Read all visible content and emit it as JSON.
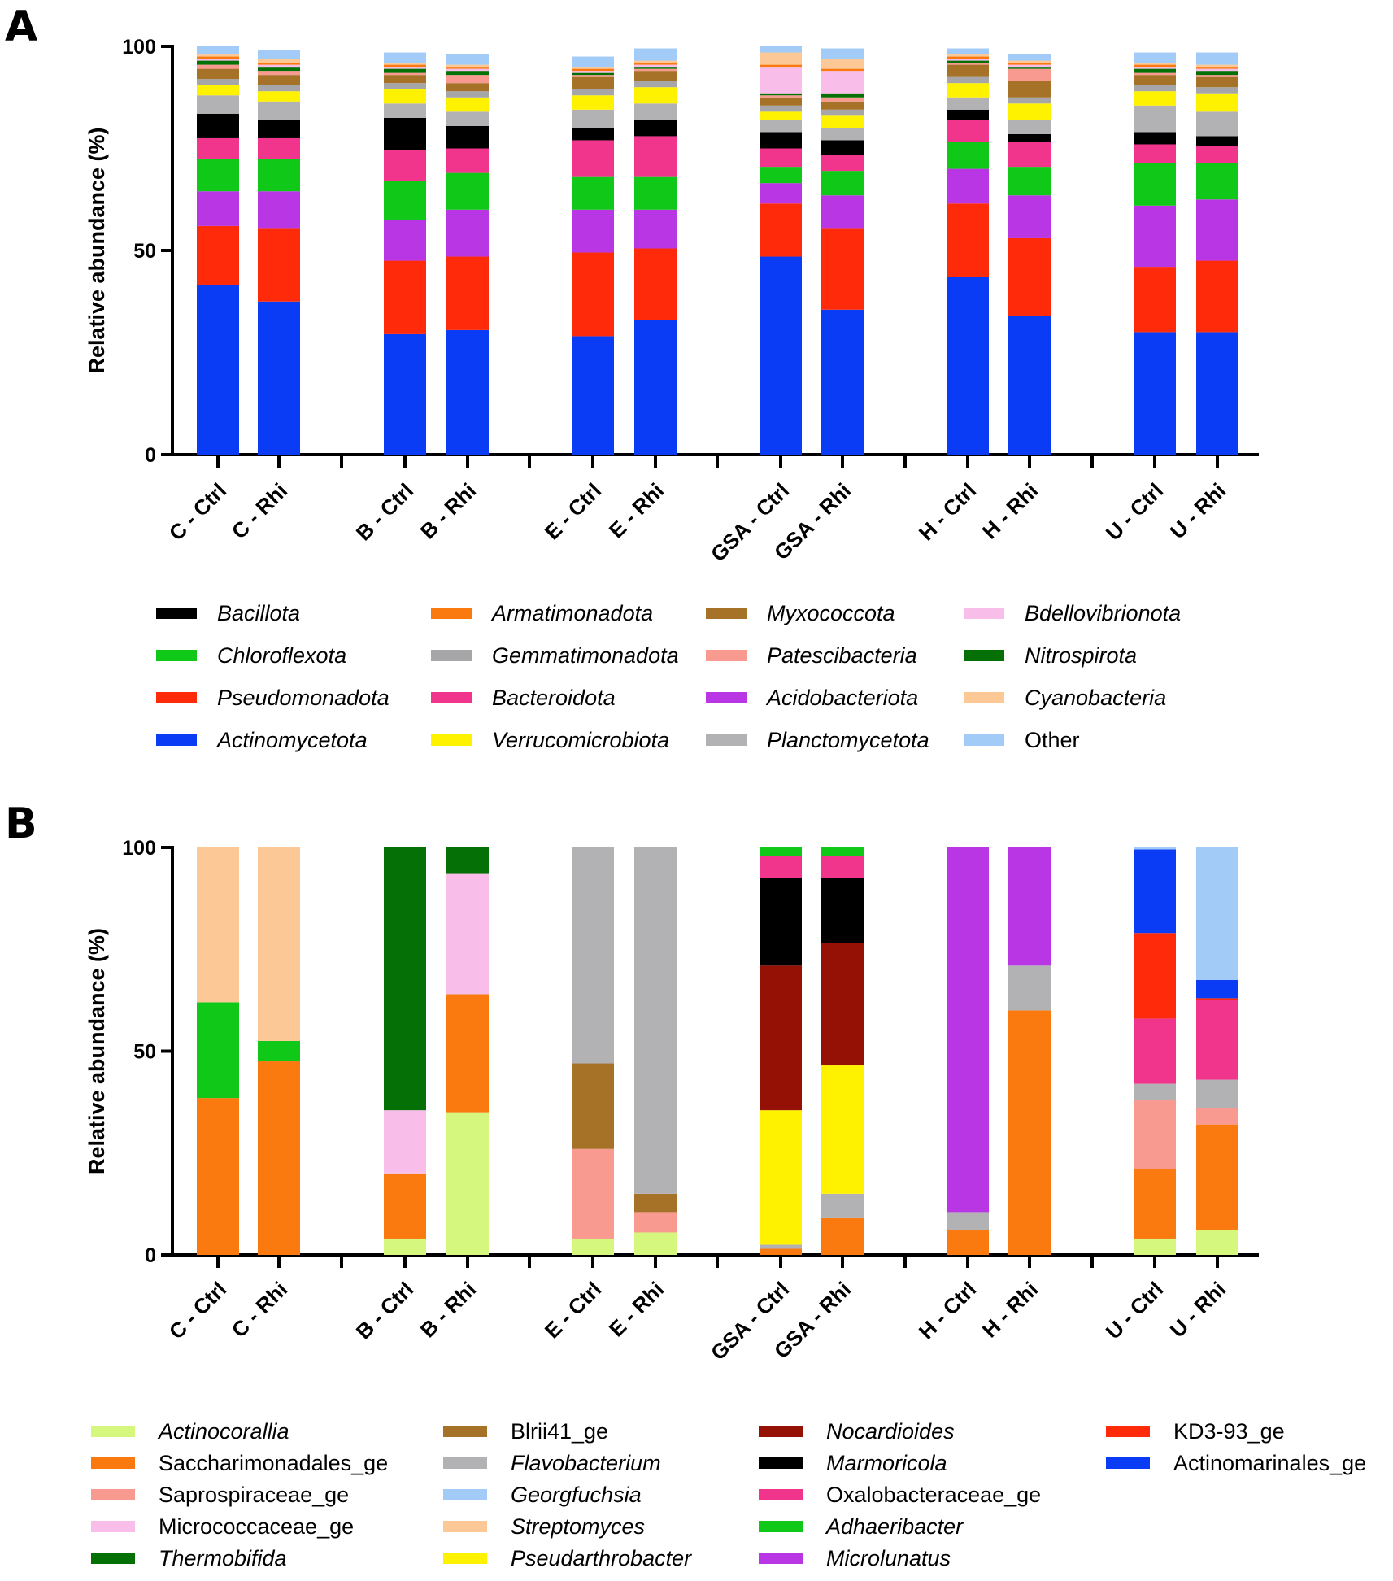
{
  "panels": [
    {
      "letter": "A",
      "chart_data": {
        "type": "bar",
        "stacked": true,
        "title": "",
        "xlabel": "",
        "ylabel": "Relative abundance (%)",
        "ylim": [
          0,
          100
        ],
        "yticks": [
          "0",
          "50",
          "100"
        ],
        "categories": [
          "C - Ctrl",
          "C - Rhi",
          "B - Ctrl",
          "B - Rhi",
          "E - Ctrl",
          "E - Rhi",
          "GSA - Ctrl",
          "GSA - Rhi",
          "H - Ctrl",
          "H - Rhi",
          "U - Ctrl",
          "U - Rhi"
        ],
        "groups": [
          "C",
          "B",
          "E",
          "GSA",
          "H",
          "U"
        ],
        "legend_position": "bottom",
        "series": [
          {
            "name": "Actinomycetota",
            "color": "#0b3cf5",
            "italic": true,
            "values": [
              41.5,
              37.5,
              29.5,
              30.5,
              29,
              33,
              48.5,
              35.5,
              43.5,
              34,
              30,
              30
            ]
          },
          {
            "name": "Pseudomonadota",
            "color": "#ff2a0a",
            "italic": true,
            "values": [
              14.5,
              18,
              18,
              18,
              20.5,
              17.5,
              13,
              20,
              18,
              19,
              16,
              17.5
            ]
          },
          {
            "name": "Acidobacteriota",
            "color": "#b836e3",
            "italic": true,
            "values": [
              8.5,
              9,
              10,
              11.5,
              10.5,
              9.5,
              5,
              8,
              8.5,
              10.5,
              15,
              15
            ]
          },
          {
            "name": "Chloroflexota",
            "color": "#10c818",
            "italic": true,
            "values": [
              8,
              8,
              9.5,
              9,
              8,
              8,
              4,
              6,
              6.5,
              7,
              10.5,
              9
            ]
          },
          {
            "name": "Bacteroidota",
            "color": "#f2358c",
            "italic": true,
            "values": [
              5,
              5,
              7.5,
              6,
              9,
              10,
              4.5,
              4,
              5.5,
              6,
              4.5,
              4
            ]
          },
          {
            "name": "Bacillota",
            "color": "#000000",
            "italic": true,
            "values": [
              6,
              4.5,
              8,
              5.5,
              3,
              4,
              4,
              3.5,
              2.5,
              2,
              3,
              2.5
            ]
          },
          {
            "name": "Planctomycetota",
            "color": "#b2b2b4",
            "italic": true,
            "values": [
              4.5,
              4.5,
              3.5,
              3.5,
              4.5,
              4,
              3,
              3,
              3,
              3.5,
              6.5,
              6
            ]
          },
          {
            "name": "Verrucomicrobiota",
            "color": "#fff200",
            "italic": true,
            "values": [
              2.5,
              2.5,
              3.5,
              3.5,
              3.5,
              4,
              2,
              3,
              3.5,
              4,
              3.5,
              4.5
            ]
          },
          {
            "name": "Gemmatimonadota",
            "color": "#a6a6a8",
            "italic": true,
            "values": [
              1.5,
              1.5,
              1.5,
              1.5,
              1.5,
              1.5,
              1.5,
              1.5,
              1.5,
              1.5,
              1.5,
              1.5
            ]
          },
          {
            "name": "Myxococcota",
            "color": "#a57228",
            "italic": true,
            "values": [
              2.5,
              2.5,
              2,
              2,
              3,
              2.5,
              2,
              2,
              3,
              4,
              2.5,
              2.5
            ]
          },
          {
            "name": "Patescibacteria",
            "color": "#f99a90",
            "italic": true,
            "values": [
              1,
              1,
              0.5,
              2,
              0.5,
              0.5,
              0.5,
              1,
              0.5,
              3,
              0.5,
              0.5
            ]
          },
          {
            "name": "Nitrospirota",
            "color": "#047006",
            "italic": true,
            "values": [
              1,
              1,
              1,
              1,
              0.5,
              0.5,
              0.5,
              1,
              0.5,
              0.5,
              1,
              1
            ]
          },
          {
            "name": "Bdellovibrionota",
            "color": "#f8bde8",
            "italic": true,
            "values": [
              0.5,
              0.5,
              0.5,
              0.5,
              0.5,
              0.5,
              6.5,
              5.5,
              0.5,
              0.5,
              0.5,
              0.5
            ]
          },
          {
            "name": "Armatimonadota",
            "color": "#fb7a10",
            "italic": true,
            "values": [
              0.5,
              0.5,
              0.5,
              0.5,
              0.5,
              0.5,
              0.5,
              0.5,
              0.5,
              0.5,
              0.5,
              0.5
            ]
          },
          {
            "name": "Cyanobacteria",
            "color": "#fbc896",
            "italic": true,
            "values": [
              0.5,
              1,
              0.5,
              0.5,
              0.5,
              0.5,
              3,
              2.5,
              0.5,
              0.5,
              0.5,
              0.5
            ]
          },
          {
            "name": "Other",
            "color": "#a2cbf7",
            "italic": false,
            "values": [
              2,
              2,
              2.5,
              2.5,
              2.5,
              3,
              1.5,
              2.5,
              1.5,
              1.5,
              2.5,
              3
            ]
          }
        ],
        "legend": [
          [
            "Bacillota",
            "Chloroflexota",
            "Pseudomonadota",
            "Actinomycetota"
          ],
          [
            "Armatimonadota",
            "Gemmatimonadota",
            "Bacteroidota",
            "Verrucomicrobiota"
          ],
          [
            "Myxococcota",
            "Patescibacteria",
            "Acidobacteriota",
            "Planctomycetota"
          ],
          [
            "Bdellovibrionota",
            "Nitrospirota",
            "Cyanobacteria",
            "Other"
          ]
        ]
      }
    },
    {
      "letter": "B",
      "chart_data": {
        "type": "bar",
        "stacked": true,
        "title": "",
        "xlabel": "",
        "ylabel": "Relative abundance (%)",
        "ylim": [
          0,
          100
        ],
        "yticks": [
          "0",
          "50",
          "100"
        ],
        "categories": [
          "C - Ctrl",
          "C - Rhi",
          "B - Ctrl",
          "B - Rhi",
          "E - Ctrl",
          "E - Rhi",
          "GSA - Ctrl",
          "GSA - Rhi",
          "H - Ctrl",
          "H - Rhi",
          "U - Ctrl",
          "U - Rhi"
        ],
        "groups": [
          "C",
          "B",
          "E",
          "GSA",
          "H",
          "U"
        ],
        "legend_position": "bottom",
        "series": [
          {
            "name": "Actinocorallia",
            "color": "#d5f77e",
            "italic": true,
            "values": [
              0,
              0,
              4,
              35,
              4,
              5.5,
              0,
              0,
              0,
              0,
              4,
              6
            ]
          },
          {
            "name": "Saccharimonadales_ge",
            "color": "#fb7a10",
            "italic": false,
            "values": [
              38.5,
              47.5,
              16,
              29,
              0,
              0,
              1.5,
              9,
              6,
              60,
              17,
              26
            ]
          },
          {
            "name": "Saprospiraceae_ge",
            "color": "#f99a90",
            "italic": false,
            "values": [
              0,
              0,
              0,
              0,
              22,
              5,
              0,
              0,
              0,
              0,
              17,
              4
            ]
          },
          {
            "name": "Micrococcaceae_ge",
            "color": "#f8bde8",
            "italic": false,
            "values": [
              0,
              0,
              15.5,
              29.5,
              0,
              0,
              0,
              0,
              0,
              0,
              0,
              0
            ]
          },
          {
            "name": "Thermobifida",
            "color": "#047006",
            "italic": true,
            "values": [
              0,
              0,
              64.5,
              6.5,
              0,
              0,
              0,
              0,
              0,
              0,
              0,
              0
            ]
          },
          {
            "name": "Blrii41_ge",
            "color": "#a57228",
            "italic": false,
            "values": [
              0,
              0,
              0,
              0,
              21,
              4.5,
              0,
              0,
              0,
              0,
              0,
              0
            ]
          },
          {
            "name": "Flavobacterium",
            "color": "#b2b2b4",
            "italic": true,
            "values": [
              0,
              0,
              0,
              0,
              53,
              85,
              1,
              6,
              4.5,
              11,
              4,
              7
            ]
          },
          {
            "name": "Pseudarthrobacter",
            "color": "#fff200",
            "italic": true,
            "values": [
              0,
              0,
              0,
              0,
              0,
              0,
              33,
              31.5,
              0,
              0,
              0,
              0
            ]
          },
          {
            "name": "Nocardioides",
            "color": "#951105",
            "italic": true,
            "values": [
              0,
              0,
              0,
              0,
              0,
              0,
              35.5,
              30,
              0,
              0,
              0,
              0
            ]
          },
          {
            "name": "Marmoricola",
            "color": "#000000",
            "italic": true,
            "values": [
              0,
              0,
              0,
              0,
              0,
              0,
              21.5,
              16,
              0,
              0,
              0,
              0
            ]
          },
          {
            "name": "Oxalobacteraceae_ge",
            "color": "#f2358c",
            "italic": false,
            "values": [
              0,
              0,
              0,
              0,
              0,
              0,
              5.5,
              5.5,
              0,
              0,
              16,
              19.5
            ]
          },
          {
            "name": "KD3-93_ge",
            "color": "#ff2a0a",
            "italic": false,
            "values": [
              0,
              0,
              0,
              0,
              0,
              0,
              0,
              0,
              0,
              0,
              21,
              0.5
            ]
          },
          {
            "name": "Actinomarinales_ge",
            "color": "#0b3cf5",
            "italic": false,
            "values": [
              0,
              0,
              0,
              0,
              0,
              0,
              0,
              0,
              0,
              0,
              20.5,
              4.5
            ]
          },
          {
            "name": "Georgfuchsia",
            "color": "#a2cbf7",
            "italic": true,
            "values": [
              0,
              0,
              0,
              0,
              0,
              0,
              0,
              0,
              0,
              0,
              0.5,
              32.5
            ]
          },
          {
            "name": "Adhaeribacter",
            "color": "#10c818",
            "italic": true,
            "values": [
              23.5,
              5,
              0,
              0,
              0,
              0,
              2,
              2,
              0,
              0,
              0,
              0
            ]
          },
          {
            "name": "Microlunatus",
            "color": "#b836e3",
            "italic": true,
            "values": [
              0,
              0,
              0,
              0,
              0,
              0,
              0,
              0,
              89.5,
              29,
              0,
              0
            ]
          },
          {
            "name": "Streptomyces",
            "color": "#fbc896",
            "italic": true,
            "values": [
              38,
              47.5,
              0,
              0,
              0,
              0,
              0,
              0,
              0,
              0,
              0,
              0
            ]
          }
        ],
        "legend": [
          [
            "Actinocorallia",
            "Saccharimonadales_ge",
            "Saprospiraceae_ge",
            "Micrococcaceae_ge",
            "Thermobifida"
          ],
          [
            "Blrii41_ge",
            "Flavobacterium",
            "Georgfuchsia",
            "Streptomyces",
            "Pseudarthrobacter"
          ],
          [
            "Nocardioides",
            "Marmoricola",
            "Oxalobacteraceae_ge",
            "Adhaeribacter",
            "Microlunatus"
          ],
          [
            "KD3-93_ge",
            "Actinomarinales_ge"
          ]
        ]
      }
    }
  ]
}
